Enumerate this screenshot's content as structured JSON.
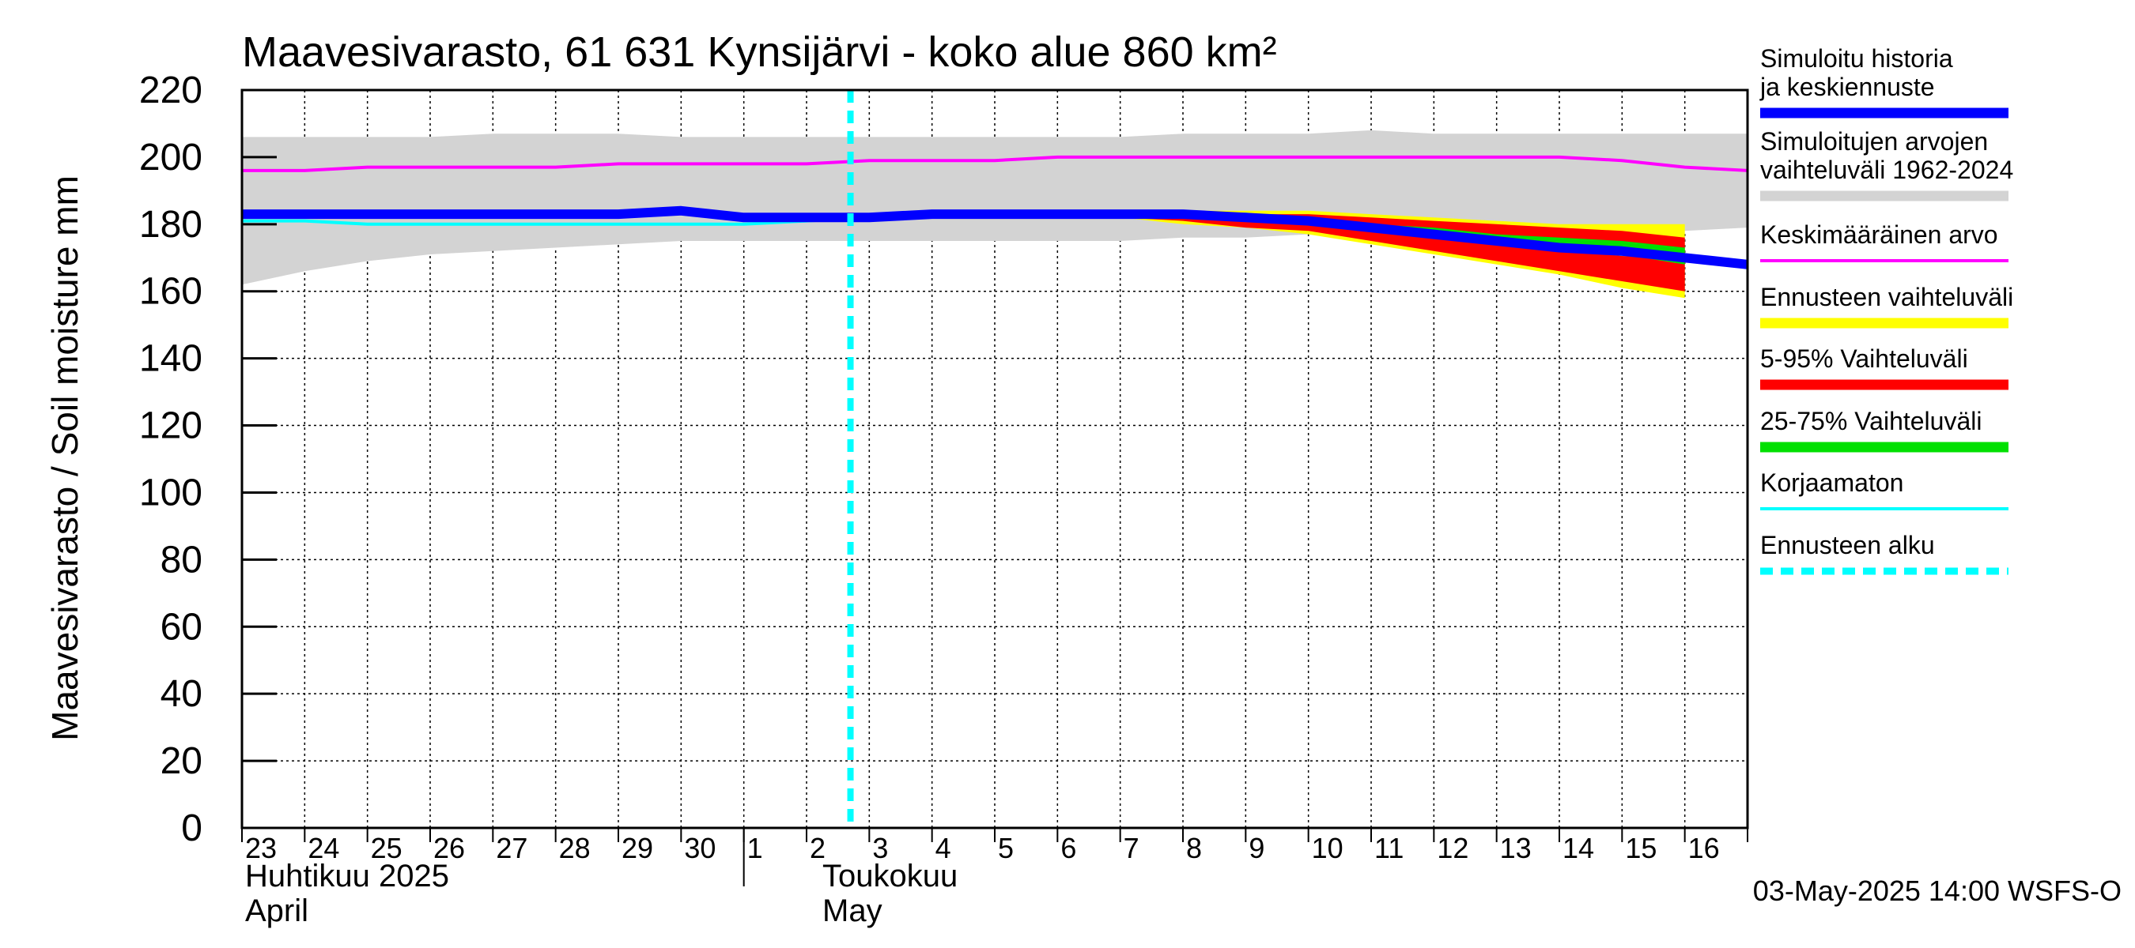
{
  "chart_data": {
    "type": "area",
    "title": "Maavesivarasto, 61 631 Kynsijärvi - koko alue 860 km²",
    "ylabel": "Maavesivarasto / Soil moisture   mm",
    "ylim": [
      0,
      220
    ],
    "yticks": [
      "0",
      "20",
      "40",
      "60",
      "80",
      "100",
      "120",
      "140",
      "160",
      "180",
      "200",
      "220"
    ],
    "xlim": [
      "2025-04-23",
      "2025-05-17"
    ],
    "xtick_labels": [
      "23",
      "24",
      "25",
      "26",
      "27",
      "28",
      "29",
      "30",
      "1",
      "2",
      "3",
      "4",
      "5",
      "6",
      "7",
      "8",
      "9",
      "10",
      "11",
      "12",
      "13",
      "14",
      "15",
      "16"
    ],
    "month_labels": [
      {
        "fi": "Huhtikuu  2025",
        "en": "April"
      },
      {
        "fi": "Toukokuu",
        "en": "May"
      }
    ],
    "grid": true,
    "legend_position": "right",
    "forecast_start": "2025-05-03",
    "footer": "03-May-2025 14:00 WSFS-O",
    "dates": [
      "2025-04-23",
      "2025-04-24",
      "2025-04-25",
      "2025-04-26",
      "2025-04-27",
      "2025-04-28",
      "2025-04-29",
      "2025-04-30",
      "2025-05-01",
      "2025-05-02",
      "2025-05-03",
      "2025-05-04",
      "2025-05-05",
      "2025-05-06",
      "2025-05-07",
      "2025-05-08",
      "2025-05-09",
      "2025-05-10",
      "2025-05-11",
      "2025-05-12",
      "2025-05-13",
      "2025-05-14",
      "2025-05-15",
      "2025-05-16",
      "2025-05-17"
    ],
    "series": [
      {
        "name": "Simuloitujen arvojen vaihteluväli 1962-2024",
        "kind": "band",
        "color": "#d3d3d3",
        "low": [
          162,
          166,
          169,
          171,
          172,
          173,
          174,
          175,
          175,
          175,
          175,
          175,
          175,
          175,
          175,
          176,
          176,
          177,
          177,
          177,
          178,
          178,
          178,
          178,
          179
        ],
        "high": [
          206,
          206,
          206,
          206,
          207,
          207,
          207,
          206,
          206,
          206,
          206,
          206,
          206,
          206,
          206,
          207,
          207,
          207,
          208,
          207,
          207,
          207,
          207,
          207,
          207
        ]
      },
      {
        "name": "Ennusteen vaihteluväli",
        "kind": "band",
        "color": "#ffff00",
        "start": "2025-05-03",
        "low": [
          183,
          183,
          183,
          183,
          182,
          180,
          179,
          177,
          174,
          171,
          168,
          165,
          161,
          158
        ],
        "high": [
          183,
          183,
          184,
          184,
          184,
          184,
          184,
          184,
          183,
          182,
          181,
          180,
          180,
          180
        ]
      },
      {
        "name": "5-95% Vaihteluväli",
        "kind": "band",
        "color": "#ff0000",
        "start": "2025-05-03",
        "low": [
          183,
          183,
          183,
          183,
          182,
          181,
          179,
          178,
          175,
          172,
          169,
          166,
          163,
          160
        ],
        "high": [
          183,
          183,
          183,
          183,
          184,
          184,
          183,
          183,
          182,
          181,
          180,
          179,
          178,
          176
        ]
      },
      {
        "name": "25-75% Vaihteluväli",
        "kind": "band",
        "color": "#00e000",
        "start": "2025-05-03",
        "low": [
          183,
          183,
          183,
          183,
          183,
          182,
          182,
          181,
          179,
          177,
          175,
          173,
          171,
          168
        ],
        "high": [
          183,
          183,
          183,
          183,
          183,
          183,
          183,
          182,
          180,
          179,
          177,
          176,
          175,
          173
        ]
      },
      {
        "name": "Keskimääräinen arvo",
        "kind": "line",
        "color": "#ff00ff",
        "values": [
          196,
          196,
          197,
          197,
          197,
          197,
          198,
          198,
          198,
          198,
          199,
          199,
          199,
          200,
          200,
          200,
          200,
          200,
          200,
          200,
          200,
          200,
          199,
          197,
          196
        ]
      },
      {
        "name": "Korjaamaton",
        "kind": "line",
        "color": "#00ffff",
        "values": [
          181,
          181,
          180,
          180,
          180,
          180,
          180,
          180,
          180,
          181,
          182,
          183,
          183,
          183,
          183,
          183,
          183,
          181,
          179,
          177,
          175,
          173,
          171,
          170,
          168
        ]
      },
      {
        "name": "Simuloitu historia ja keskiennuste",
        "kind": "line",
        "color": "#0000ff",
        "values": [
          183,
          183,
          183,
          183,
          183,
          183,
          183,
          184,
          182,
          182,
          182,
          183,
          183,
          183,
          183,
          183,
          182,
          181,
          179,
          177,
          175,
          173,
          172,
          170,
          168
        ]
      }
    ]
  },
  "legend": [
    {
      "label": "Simuloitu historia ja keskiennuste",
      "color": "#0000ff",
      "style": "thick"
    },
    {
      "label": "Simuloitujen arvojen vaihteluväli 1962-2024",
      "color": "#d3d3d3",
      "style": "thick"
    },
    {
      "label": "Keskimääräinen arvo",
      "color": "#ff00ff",
      "style": "thin"
    },
    {
      "label": "Ennusteen vaihteluväli",
      "color": "#ffff00",
      "style": "thick"
    },
    {
      "label": "5-95% Vaihteluväli",
      "color": "#ff0000",
      "style": "thick"
    },
    {
      "label": "25-75% Vaihteluväli",
      "color": "#00e000",
      "style": "thick"
    },
    {
      "label": "Korjaamaton",
      "color": "#00ffff",
      "style": "thin"
    },
    {
      "label": "Ennusteen alku",
      "color": "#00ffff",
      "style": "dashed"
    }
  ]
}
